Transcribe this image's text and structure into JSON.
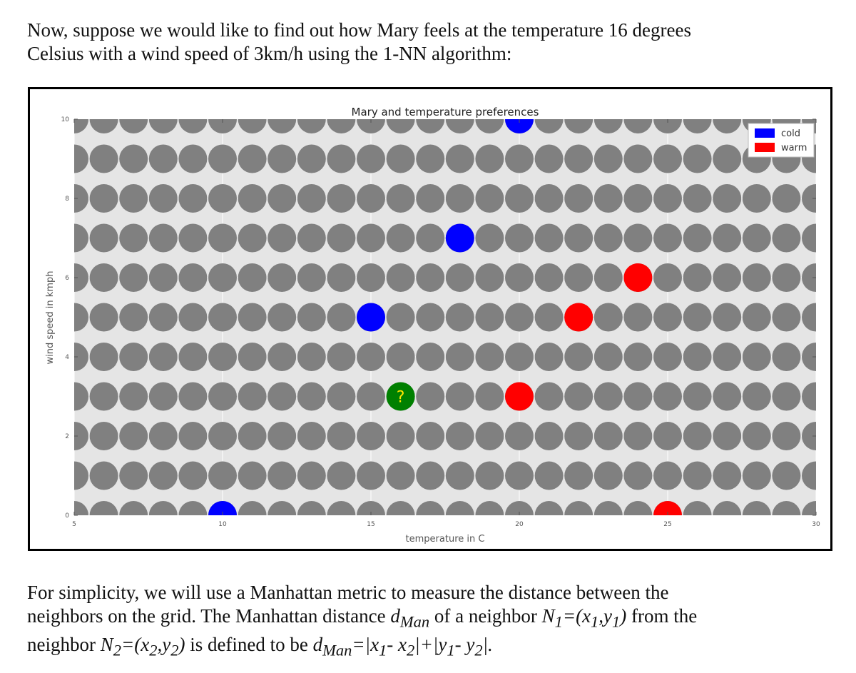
{
  "intro": {
    "line1": "Now, suppose we would like to find out how Mary feels at the temperature 16 degrees",
    "line2": "Celsius with a wind speed of 3km/h using the 1-NN algorithm:"
  },
  "outro": {
    "t1": "For simplicity, we will use a Manhattan metric to measure the distance between the",
    "t2": "neighbors on the grid. The Manhattan distance ",
    "d": "d",
    "man": "Man",
    "t3": " of a neighbor ",
    "N1": "N",
    "one": "1",
    "t4": "=(",
    "x1": "x",
    "y1": "y",
    "comma": ",",
    "close": ")",
    "t5": " from the",
    "t6": "neighbor ",
    "N2": "N",
    "two": "2",
    "x2": "x",
    "y2": "y",
    "t7": " is defined to be ",
    "eq1": "=|",
    "minus": "- ",
    "bar_plus_bar": "|+|",
    "end": "|."
  },
  "colors": {
    "grid_point": "#808080",
    "cold": "#0000ff",
    "warm": "#ff0000",
    "query": "#008000",
    "query_mark": "#ffe600",
    "plot_bg": "#e5e5e5"
  },
  "chart_data": {
    "type": "scatter",
    "title": "Mary and temperature preferences",
    "xlabel": "temperature in C",
    "ylabel": "wind speed in kmph",
    "xlim": [
      5,
      30
    ],
    "ylim": [
      0,
      10
    ],
    "xticks": [
      "5",
      "10",
      "15",
      "20",
      "25",
      "30"
    ],
    "yticks": [
      "0",
      "2",
      "4",
      "6",
      "8",
      "10"
    ],
    "grid": true,
    "legend_position": "top-right",
    "background_grid": {
      "x": [
        5,
        30
      ],
      "y": [
        0,
        10
      ],
      "step": 1
    },
    "series": [
      {
        "name": "cold",
        "color": "#0000ff",
        "points": [
          [
            20,
            10
          ],
          [
            18,
            7
          ],
          [
            15,
            5
          ],
          [
            10,
            0
          ]
        ]
      },
      {
        "name": "warm",
        "color": "#ff0000",
        "points": [
          [
            24,
            6
          ],
          [
            22,
            5
          ],
          [
            20,
            3
          ],
          [
            25,
            0
          ]
        ]
      }
    ],
    "query_point": {
      "x": 16,
      "y": 3,
      "label": "?",
      "color": "#008000"
    }
  }
}
